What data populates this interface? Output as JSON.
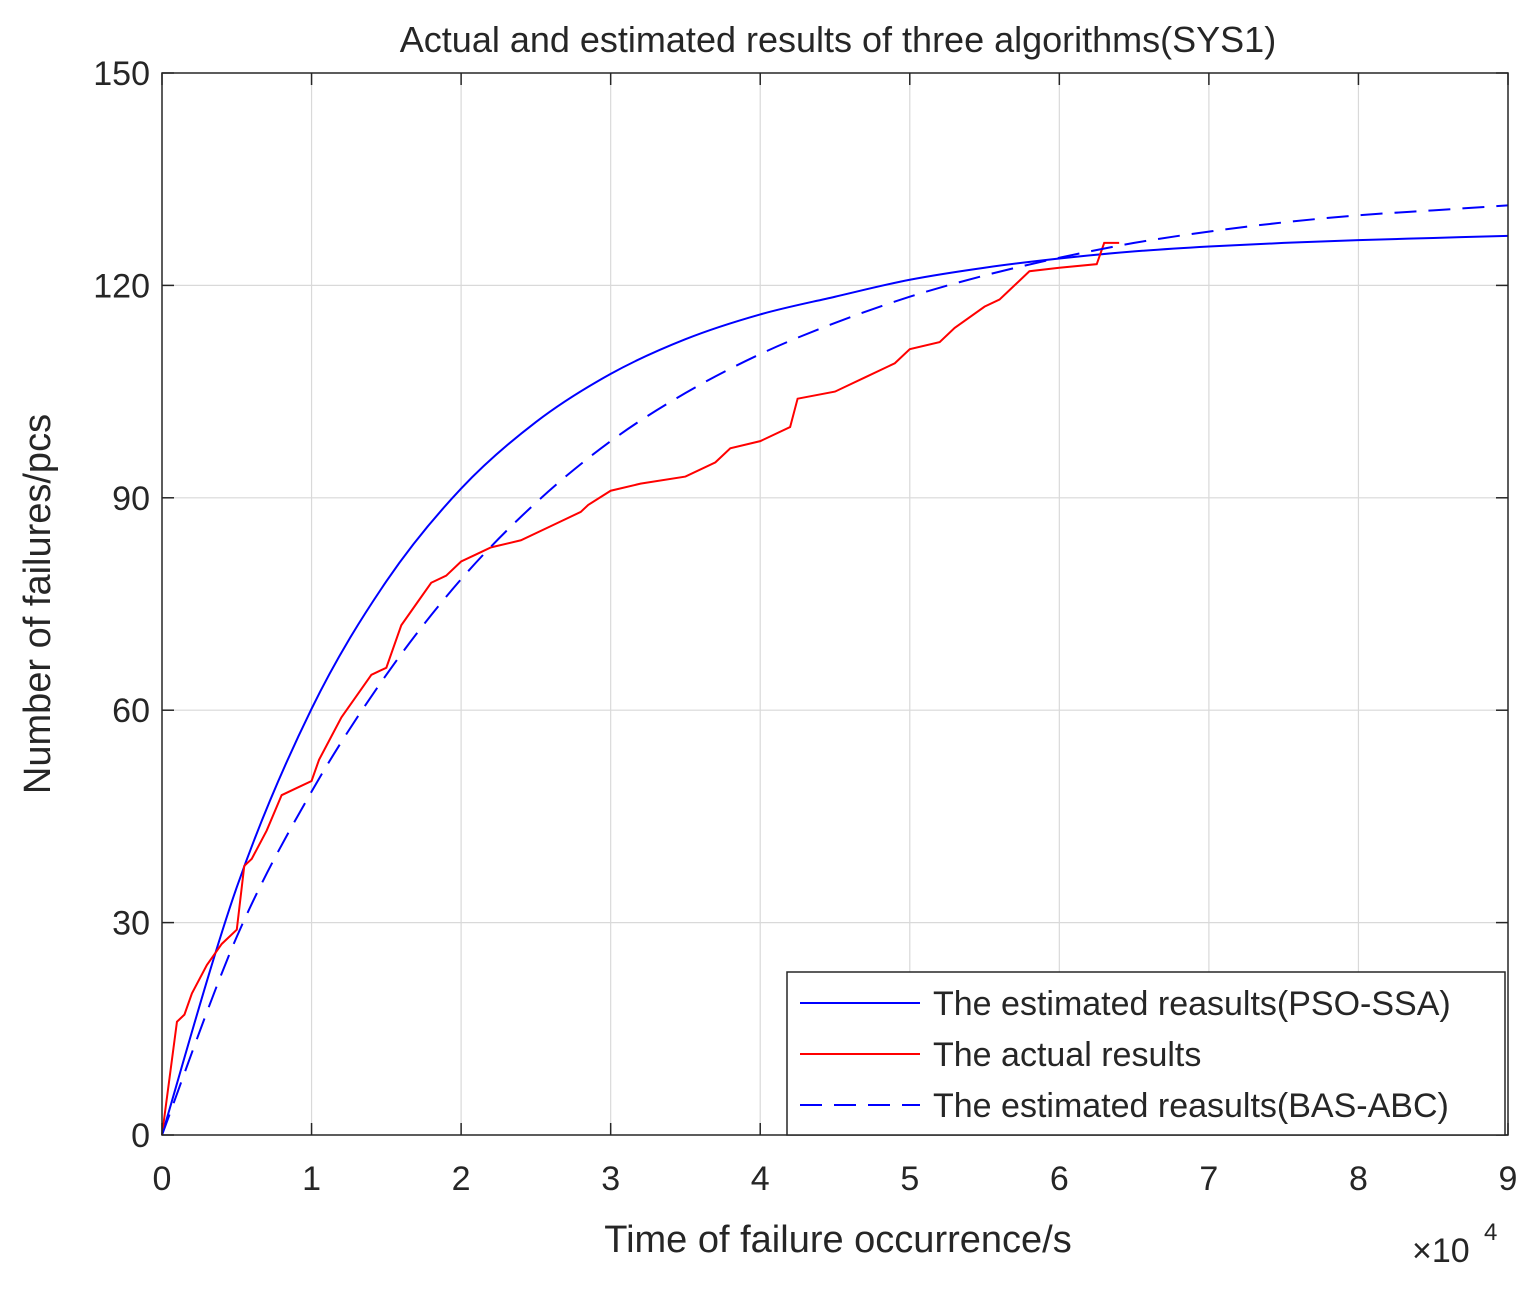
{
  "chart_data": {
    "type": "line",
    "title": "Actual and estimated results of three algorithms(SYS1)",
    "xlabel": "Time of failure occurrence/s",
    "ylabel": "Number of failures/pcs",
    "x_exponent_label": "×10",
    "x_exponent_power": "4",
    "xlim": [
      0,
      9
    ],
    "ylim": [
      0,
      150
    ],
    "xticks": [
      0,
      1,
      2,
      3,
      4,
      5,
      6,
      7,
      8,
      9
    ],
    "yticks": [
      0,
      30,
      60,
      90,
      120,
      150
    ],
    "grid": true,
    "legend_position": "bottom-right",
    "series": [
      {
        "name": "The estimated reasults(PSO-SSA)",
        "color": "#0000ff",
        "style": "solid",
        "x": [
          0,
          0.5,
          1,
          1.5,
          2,
          2.5,
          3,
          3.5,
          4,
          4.5,
          5,
          5.5,
          6,
          6.5,
          7,
          7.5,
          8,
          8.5,
          9
        ],
        "y": [
          0,
          35.0,
          60.2,
          78.2,
          91.3,
          100.7,
          107.5,
          112.4,
          115.9,
          118.4,
          120.8,
          122.5,
          123.8,
          124.8,
          125.5,
          126.0,
          126.4,
          126.7,
          127.0
        ]
      },
      {
        "name": "The actual results",
        "color": "#ff0000",
        "style": "solid",
        "x": [
          0,
          0.05,
          0.1,
          0.15,
          0.2,
          0.3,
          0.4,
          0.5,
          0.55,
          0.6,
          0.7,
          0.8,
          0.9,
          1.0,
          1.05,
          1.1,
          1.2,
          1.3,
          1.4,
          1.5,
          1.6,
          1.7,
          1.8,
          1.9,
          2.0,
          2.1,
          2.2,
          2.4,
          2.6,
          2.8,
          2.85,
          3.0,
          3.2,
          3.5,
          3.7,
          3.8,
          4.0,
          4.2,
          4.25,
          4.5,
          4.7,
          4.9,
          5.0,
          5.2,
          5.3,
          5.5,
          5.6,
          5.65,
          5.8,
          6.0,
          6.25,
          6.3,
          6.4
        ],
        "y": [
          0,
          8,
          16,
          17,
          20,
          24,
          27,
          29,
          38,
          39,
          43,
          48,
          49,
          50,
          53,
          55,
          59,
          62,
          65,
          66,
          72,
          75,
          78,
          79,
          81,
          82,
          83,
          84,
          86,
          88,
          89,
          91,
          92,
          93,
          95,
          97,
          98,
          100,
          104,
          105,
          107,
          109,
          111,
          112,
          114,
          117,
          118,
          119,
          122,
          122.5,
          123,
          126,
          126
        ]
      },
      {
        "name": "The estimated reasults(BAS-ABC)",
        "color": "#0000ff",
        "style": "dashed",
        "x": [
          0,
          0.5,
          1,
          1.5,
          2,
          2.5,
          3,
          3.5,
          4,
          4.5,
          5,
          5.5,
          6,
          6.5,
          7,
          7.5,
          8,
          8.5,
          9
        ],
        "y": [
          0,
          28.0,
          48.5,
          65.0,
          78.5,
          89.3,
          98.0,
          104.8,
          110.3,
          114.7,
          118.4,
          121.4,
          123.9,
          126.0,
          127.6,
          128.9,
          129.9,
          130.6,
          131.3
        ]
      }
    ]
  }
}
